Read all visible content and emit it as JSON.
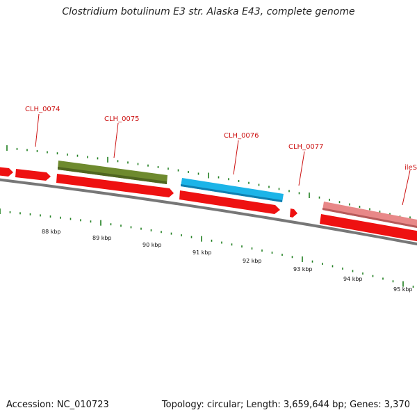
{
  "title": "Clostridium botulinum E3 str. Alaska E43, complete genome",
  "footer": {
    "accession": "Accession: NC_010723",
    "summary": "Topology: circular; Length: 3,659,644 bp; Genes: 3,370"
  },
  "colors": {
    "cds": "#ee1111",
    "cds_dark": "#aa0000",
    "green_gene": "#6e8a2e",
    "blue_gene": "#1cb4e8",
    "pink_gene": "#e88888",
    "backbone": "#777777",
    "tick": "#1e7e1e",
    "label": "#cc1111"
  },
  "genes": [
    {
      "name": "CLH_0074"
    },
    {
      "name": "CLH_0075"
    },
    {
      "name": "CLH_0076"
    },
    {
      "name": "CLH_0077"
    },
    {
      "name": "ileS"
    }
  ],
  "scale": {
    "unit": "kbp",
    "labels": [
      "88 kbp",
      "89 kbp",
      "90 kbp",
      "91 kbp",
      "92 kbp",
      "93 kbp",
      "94 kbp",
      "95 kbp"
    ]
  }
}
